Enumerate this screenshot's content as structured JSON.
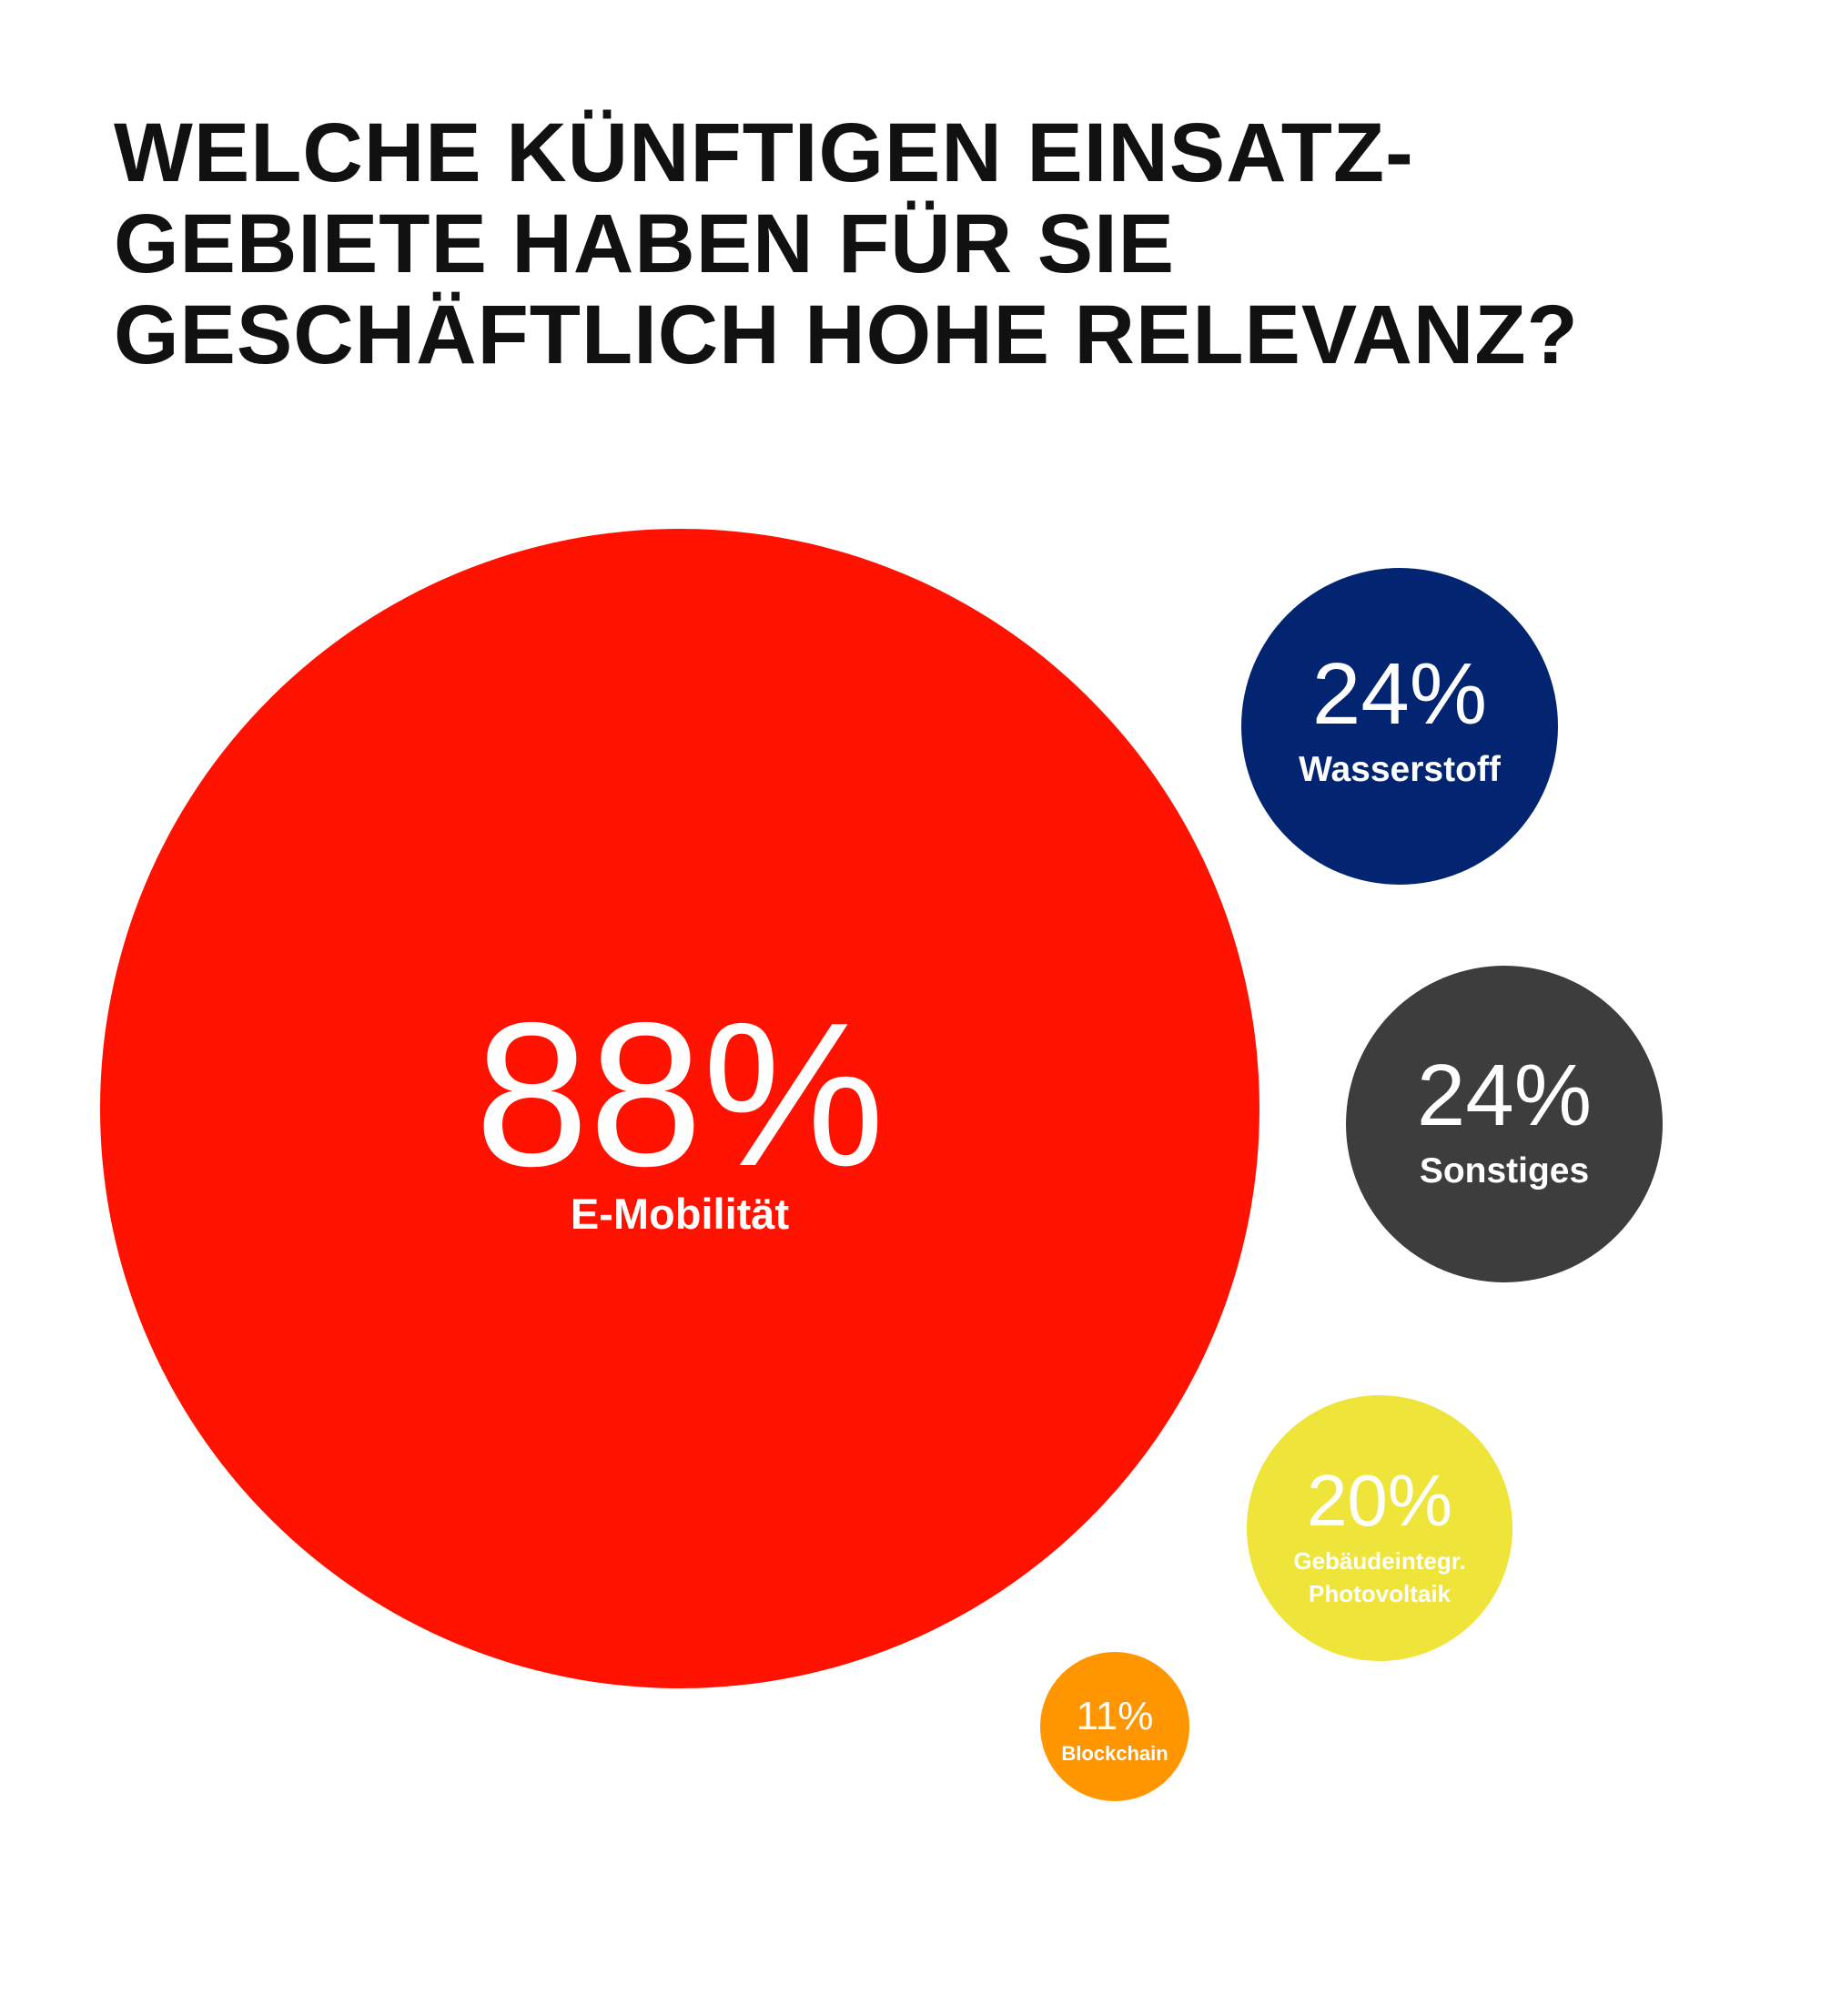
{
  "title_lines": [
    "WELCHE KÜNFTIGEN EINSATZ-",
    "GEBIETE HABEN FÜR SIE",
    "GESCHÄFTLICH HOHE RELEVANZ?"
  ],
  "chart_data": {
    "type": "bubble",
    "title": "WELCHE KÜNFTIGEN EINSATZGEBIETE HABEN FÜR SIE GESCHÄFTLICH HOHE RELEVANZ?",
    "unit": "%",
    "items": [
      {
        "key": "emobilitaet",
        "label": [
          "E-Mobilität"
        ],
        "value": 88,
        "display": "88%",
        "color": "#ff1200"
      },
      {
        "key": "wasserstoff",
        "label": [
          "Wasserstoff"
        ],
        "value": 24,
        "display": "24%",
        "color": "#022471"
      },
      {
        "key": "sonstiges",
        "label": [
          "Sonstiges"
        ],
        "value": 24,
        "display": "24%",
        "color": "#3d3d3d"
      },
      {
        "key": "photovoltaik",
        "label": [
          "Gebäudeintegr.",
          "Photovoltaik"
        ],
        "value": 20,
        "display": "20%",
        "color": "#efe439"
      },
      {
        "key": "blockchain",
        "label": [
          "Blockchain"
        ],
        "value": 11,
        "display": "11%",
        "color": "#ff9600"
      }
    ]
  }
}
